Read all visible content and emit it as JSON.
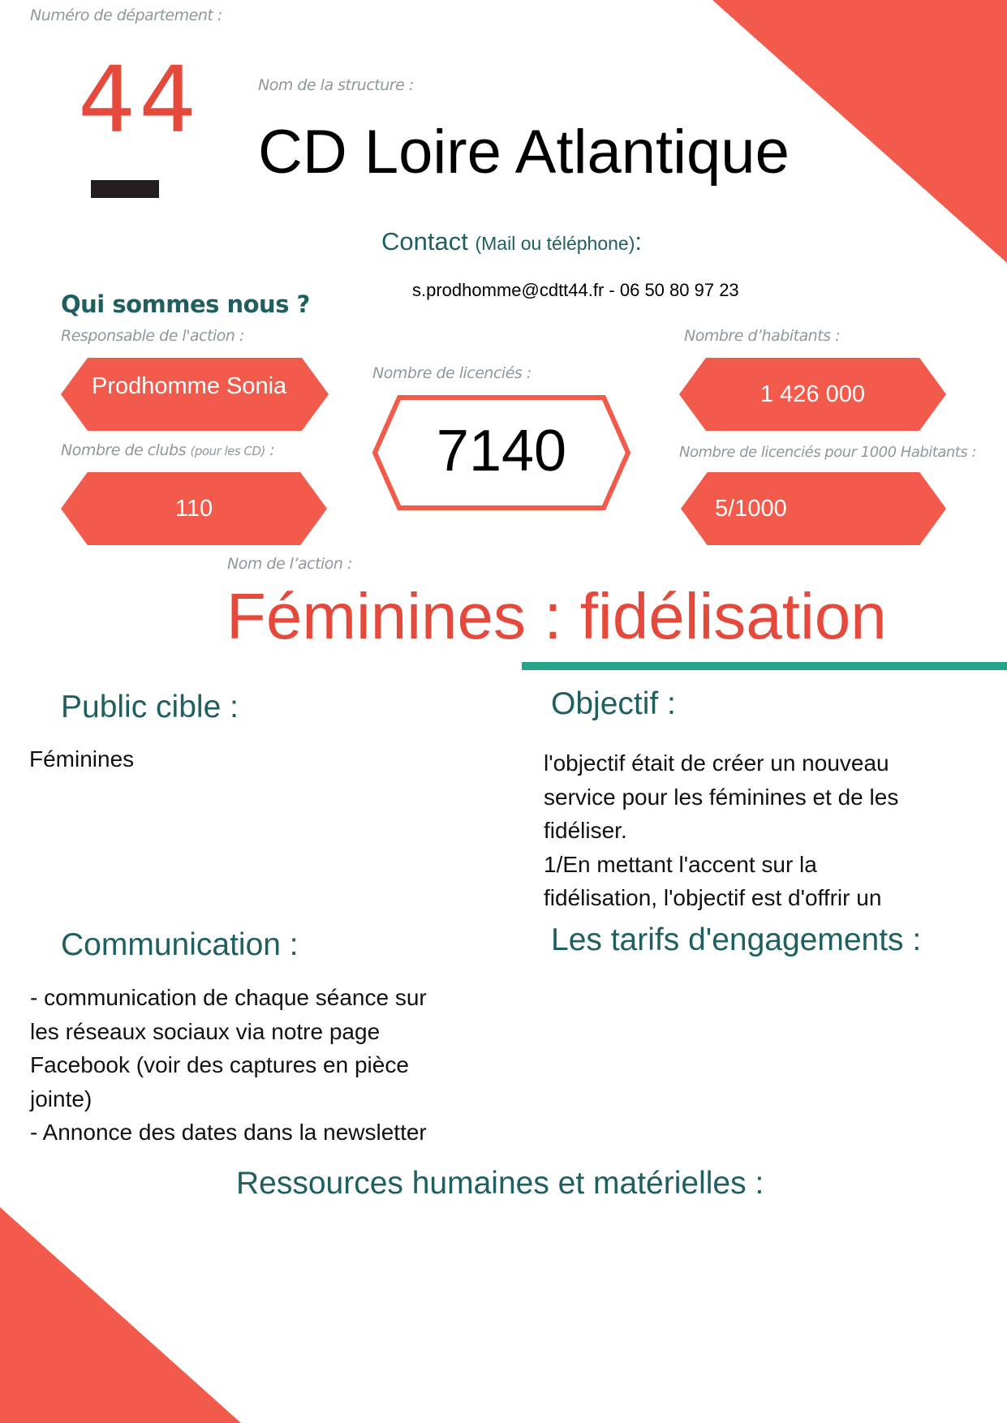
{
  "colors": {
    "accent": "#f25a4b",
    "title_red": "#e4493b",
    "teal": "#1f5f5f",
    "rule": "#25a68a"
  },
  "department": {
    "label": "Numéro de département :",
    "number": "44"
  },
  "structure": {
    "label": "Nom de la structure :",
    "name": "CD Loire Atlantique"
  },
  "contact": {
    "label": "Contact",
    "label_note": "(Mail ou téléphone)",
    "label_colon": ":",
    "value": "s.prodhomme@cdtt44.fr - 06 50 80 97 23"
  },
  "about": {
    "heading": "Qui sommes nous ?",
    "responsable_label": "Responsable de l'action :",
    "responsable": "Prodhomme Sonia",
    "clubs_label": "Nombre de clubs",
    "clubs_note": "(pour les CD)",
    "clubs_colon": " :",
    "clubs": "110",
    "licencies_label": "Nombre de licenciés :",
    "licencies": "7140",
    "habitants_label": "Nombre d’habitants :",
    "habitants": "1 426 000",
    "ratio_label": "Nombre de licenciés pour 1000 Habitants :",
    "ratio": "5/1000"
  },
  "action": {
    "label": "Nom de l’action :",
    "name": "Féminines : fidélisation"
  },
  "public": {
    "heading": "Public cible :",
    "text": "Féminines"
  },
  "objectif": {
    "heading": "Objectif :",
    "lines": [
      "l'objectif était de créer un nouveau",
      "service pour les féminines et de les",
      "fidéliser.",
      "1/En mettant l'accent sur la",
      "fidélisation, l'objectif est d'offrir un"
    ]
  },
  "communication": {
    "heading": "Communication :",
    "lines": [
      "- communication de chaque séance sur",
      "les réseaux sociaux via notre page",
      "Facebook (voir des captures en pièce",
      "jointe)",
      "- Annonce des dates dans la newsletter"
    ]
  },
  "tarifs": {
    "heading": "Les tarifs d'engagements :"
  },
  "ressources": {
    "heading": "Ressources humaines et matérielles :"
  }
}
